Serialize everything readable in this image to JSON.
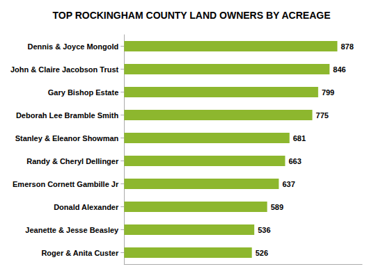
{
  "chart_data": {
    "type": "bar",
    "orientation": "horizontal",
    "title": "TOP ROCKINGHAM COUNTY LAND OWNERS BY ACREAGE",
    "categories": [
      "Roger & Anita Custer",
      "Jeanette & Jesse Beasley",
      "Donald Alexander",
      "Emerson Cornett Gambille Jr",
      "Randy & Cheryl Dellinger",
      "Stanley & Eleanor Showman",
      "Deborah Lee Bramble Smith",
      "Gary Bishop Estate",
      "John & Claire Jacobson Trust",
      "Dennis & Joyce Mongold"
    ],
    "values": [
      526,
      536,
      589,
      637,
      663,
      681,
      775,
      799,
      846,
      878
    ],
    "color": "#8DB72E",
    "xlim": [
      0,
      980
    ],
    "grid": false,
    "data_labels": true,
    "tick_labels": "y"
  }
}
